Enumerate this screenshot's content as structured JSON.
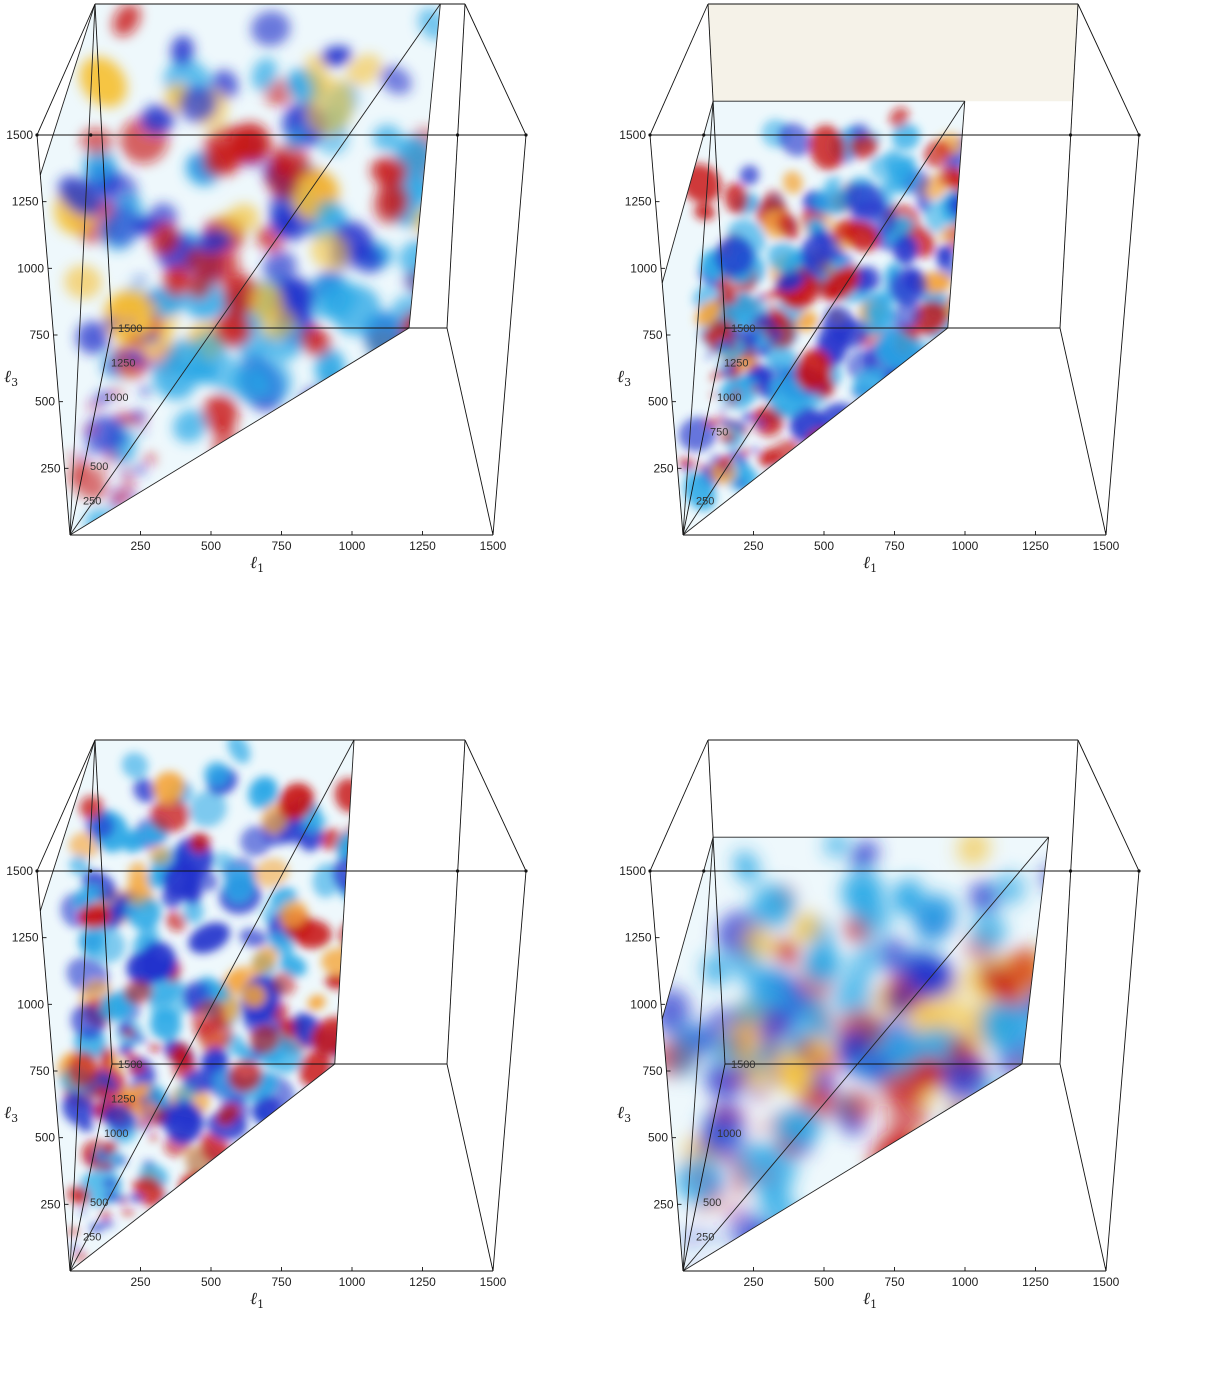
{
  "chart_data": [
    {
      "type": "heatmap",
      "subtype": "3d-volume-slice",
      "projection": "perspective",
      "xlabel": "ℓ1",
      "ylabel": "ℓ3",
      "x_ticks": [
        "250",
        "500",
        "750",
        "1000",
        "1250",
        "1500"
      ],
      "y_ticks": [
        "250",
        "500",
        "750",
        "1000",
        "1250",
        "1500"
      ],
      "inner_ticks": [
        "250",
        "500",
        "1000",
        "1250",
        "1500"
      ],
      "xlim": [
        0,
        1500
      ],
      "ylim": [
        0,
        1500
      ],
      "zlim": [
        0,
        1500
      ],
      "volume_extent": {
        "l1": [
          0,
          1400
        ],
        "l2": [
          0,
          1500
        ],
        "l3": [
          0,
          1500
        ]
      },
      "colormap": "diverging blue-white-red",
      "colors": {
        "negative": "#2233cc",
        "neg_light": "#2aa8e6",
        "neutral": "#ffffff",
        "pos_light": "#f5c23a",
        "positive": "#c81414"
      },
      "style": "wash",
      "seed": 11
    },
    {
      "type": "heatmap",
      "subtype": "3d-volume-slice",
      "projection": "perspective",
      "xlabel": "ℓ1",
      "ylabel": "ℓ3",
      "x_ticks": [
        "250",
        "500",
        "750",
        "1000",
        "1250",
        "1500"
      ],
      "y_ticks": [
        "250",
        "500",
        "750",
        "1000",
        "1250",
        "1500"
      ],
      "inner_ticks": [
        "250",
        "750",
        "1000",
        "1250",
        "1500"
      ],
      "xlim": [
        0,
        1500
      ],
      "ylim": [
        0,
        1500
      ],
      "zlim": [
        0,
        1500
      ],
      "volume_extent": {
        "l1": [
          0,
          1050
        ],
        "l2": [
          0,
          1500
        ],
        "l3": [
          0,
          1050
        ]
      },
      "colormap": "diverging blue-white-red",
      "colors": {
        "negative": "#2233cc",
        "neg_light": "#2aa8e6",
        "neutral": "#ffffff",
        "pos_light": "#f5a53a",
        "positive": "#c81414"
      },
      "style": "dense",
      "seed": 23
    },
    {
      "type": "heatmap",
      "subtype": "3d-volume-slice",
      "projection": "perspective",
      "xlabel": "ℓ1",
      "ylabel": "ℓ3",
      "x_ticks": [
        "250",
        "500",
        "750",
        "1000",
        "1250",
        "1500"
      ],
      "y_ticks": [
        "250",
        "500",
        "750",
        "1000",
        "1250",
        "1500"
      ],
      "inner_ticks": [
        "250",
        "500",
        "1000",
        "1250",
        "1500"
      ],
      "xlim": [
        0,
        1500
      ],
      "ylim": [
        0,
        1500
      ],
      "zlim": [
        0,
        1500
      ],
      "volume_extent": {
        "l1": [
          0,
          1050
        ],
        "l2": [
          0,
          1500
        ],
        "l3": [
          0,
          1500
        ]
      },
      "colormap": "diverging blue-white-red",
      "colors": {
        "negative": "#2233cc",
        "neg_light": "#2aa8e6",
        "neutral": "#ffffff",
        "pos_light": "#f5a53a",
        "positive": "#c81414"
      },
      "style": "dense",
      "seed": 37
    },
    {
      "type": "heatmap",
      "subtype": "3d-volume-slice",
      "projection": "perspective",
      "xlabel": "ℓ1",
      "ylabel": "ℓ3",
      "x_ticks": [
        "250",
        "500",
        "750",
        "1000",
        "1250",
        "1500"
      ],
      "y_ticks": [
        "250",
        "500",
        "750",
        "1000",
        "1250",
        "1500"
      ],
      "inner_ticks": [
        "250",
        "500",
        "1000",
        "1500"
      ],
      "xlim": [
        0,
        1500
      ],
      "ylim": [
        0,
        1500
      ],
      "zlim": [
        0,
        1500
      ],
      "volume_extent": {
        "l1": [
          0,
          1400
        ],
        "l2": [
          0,
          1500
        ],
        "l3": [
          0,
          1050
        ]
      },
      "colormap": "diverging blue-white-red",
      "colors": {
        "negative": "#2233cc",
        "neg_light": "#2aa8e6",
        "neutral": "#ffffff",
        "pos_light": "#f5c23a",
        "positive": "#c81414"
      },
      "style": "blurred",
      "seed": 53
    }
  ]
}
